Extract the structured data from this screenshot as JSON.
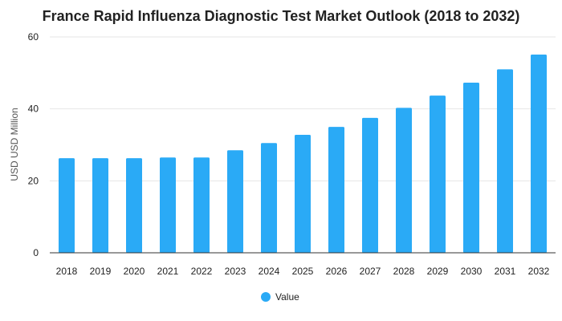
{
  "chart_data": {
    "type": "bar",
    "title": "France Rapid Influenza Diagnostic Test Market Outlook (2018 to 2032)",
    "xlabel": "",
    "ylabel": "USD USD Million",
    "ylim": [
      0,
      60
    ],
    "yticks": [
      0,
      20,
      40,
      60
    ],
    "grid": true,
    "legend_position": "bottom-center",
    "categories": [
      "2018",
      "2019",
      "2020",
      "2021",
      "2022",
      "2023",
      "2024",
      "2025",
      "2026",
      "2027",
      "2028",
      "2029",
      "2030",
      "2031",
      "2032"
    ],
    "series": [
      {
        "name": "Value",
        "color": "#2aaaf6",
        "values": [
          26.3,
          26.3,
          26.3,
          26.5,
          26.5,
          28.5,
          30.5,
          32.8,
          35.0,
          37.5,
          40.3,
          43.7,
          47.3,
          51.0,
          55.1
        ]
      }
    ]
  }
}
